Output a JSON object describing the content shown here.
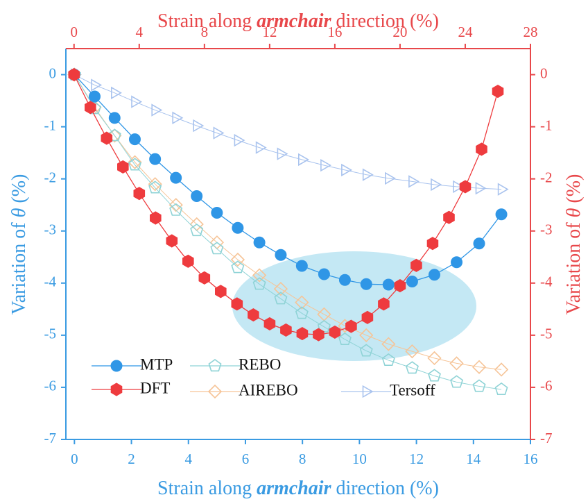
{
  "chart_data": {
    "type": "line",
    "x_label": [
      "Strain along ",
      "armchair",
      " direction (%)"
    ],
    "x2_label": [
      "Strain along ",
      "armchair",
      " direction (%)"
    ],
    "y_label": [
      "Variation of ",
      "θ",
      " (%)"
    ],
    "y2_label": [
      "Variation of ",
      "θ",
      " (%)"
    ],
    "xlim": [
      -0.3,
      16
    ],
    "xticks": [
      0,
      2,
      4,
      6,
      8,
      10,
      12,
      14,
      16
    ],
    "x2lim": [
      -0.5,
      28
    ],
    "x2ticks": [
      0,
      4,
      8,
      12,
      16,
      20,
      24,
      28
    ],
    "ylim": [
      -7,
      0.5
    ],
    "yticks": [
      0,
      -1,
      -2,
      -3,
      -4,
      -5,
      -6,
      -7
    ],
    "y2lim": [
      -7,
      0.5
    ],
    "y2ticks": [
      0,
      -1,
      -2,
      -3,
      -4,
      -5,
      -6,
      -7
    ],
    "series": [
      {
        "name": "MTP",
        "color": "#2f96e6",
        "marker": "circle",
        "filled": true,
        "x": [
          0,
          0.71,
          1.41,
          2.12,
          2.83,
          3.56,
          4.29,
          5.0,
          5.73,
          6.49,
          7.24,
          7.98,
          8.76,
          9.49,
          10.24,
          11.02,
          11.85,
          12.63,
          13.41,
          14.2,
          14.98
        ],
        "values": [
          0,
          -0.42,
          -0.83,
          -1.24,
          -1.62,
          -1.98,
          -2.33,
          -2.65,
          -2.94,
          -3.22,
          -3.46,
          -3.67,
          -3.83,
          -3.94,
          -4.02,
          -4.03,
          -3.97,
          -3.84,
          -3.6,
          -3.24,
          -2.68
        ]
      },
      {
        "name": "DFT",
        "color": "#ee3b3e",
        "marker": "hexagon",
        "filled": true,
        "axis": "y2",
        "xaxis": "x2",
        "x": [
          0,
          1,
          2,
          3,
          4,
          5,
          6,
          7,
          8,
          9,
          10,
          11,
          12,
          13,
          14,
          15,
          16,
          17,
          18,
          19,
          20,
          21,
          22,
          23,
          24,
          25,
          26
        ],
        "values": [
          0,
          -0.63,
          -1.22,
          -1.77,
          -2.28,
          -2.75,
          -3.19,
          -3.58,
          -3.9,
          -4.16,
          -4.4,
          -4.61,
          -4.78,
          -4.9,
          -4.97,
          -4.99,
          -4.94,
          -4.83,
          -4.66,
          -4.4,
          -4.05,
          -3.66,
          -3.24,
          -2.74,
          -2.15,
          -1.43,
          -0.32
        ]
      },
      {
        "name": "REBO",
        "color": "#8fd3d6",
        "marker": "pentagon",
        "filled": false,
        "x": [
          0,
          0.71,
          1.41,
          2.12,
          2.83,
          3.56,
          4.29,
          5.0,
          5.73,
          6.49,
          7.24,
          7.98,
          8.76,
          9.49,
          10.24,
          11.02,
          11.85,
          12.63,
          13.41,
          14.2,
          14.98
        ],
        "values": [
          0,
          -0.65,
          -1.17,
          -1.73,
          -2.17,
          -2.6,
          -2.99,
          -3.34,
          -3.7,
          -4.02,
          -4.3,
          -4.58,
          -4.84,
          -5.08,
          -5.3,
          -5.48,
          -5.63,
          -5.78,
          -5.9,
          -5.98,
          -6.04
        ]
      },
      {
        "name": "AIREBO",
        "color": "#f6c497",
        "marker": "diamond",
        "filled": false,
        "x": [
          0,
          0.71,
          1.41,
          2.12,
          2.83,
          3.56,
          4.29,
          5.0,
          5.73,
          6.49,
          7.24,
          7.98,
          8.76,
          9.49,
          10.24,
          11.02,
          11.85,
          12.63,
          13.41,
          14.2,
          14.98
        ],
        "values": [
          0,
          -0.63,
          -1.17,
          -1.68,
          -2.1,
          -2.5,
          -2.87,
          -3.22,
          -3.55,
          -3.85,
          -4.11,
          -4.37,
          -4.6,
          -4.82,
          -5.0,
          -5.17,
          -5.31,
          -5.44,
          -5.54,
          -5.61,
          -5.66
        ]
      },
      {
        "name": "Tersoff",
        "color": "#a9c3ee",
        "marker": "triangle",
        "filled": false,
        "x": [
          0,
          0.71,
          1.41,
          2.12,
          2.83,
          3.56,
          4.29,
          5.0,
          5.73,
          6.49,
          7.24,
          7.98,
          8.76,
          9.49,
          10.24,
          11.02,
          11.85,
          12.63,
          13.41,
          14.2,
          14.98
        ],
        "values": [
          0,
          -0.2,
          -0.35,
          -0.52,
          -0.68,
          -0.83,
          -0.98,
          -1.12,
          -1.26,
          -1.4,
          -1.52,
          -1.63,
          -1.74,
          -1.83,
          -1.92,
          -1.99,
          -2.05,
          -2.11,
          -2.15,
          -2.18,
          -2.2
        ]
      }
    ],
    "left_axis_color": "#3a9be2",
    "right_axis_color": "#e8474a"
  }
}
